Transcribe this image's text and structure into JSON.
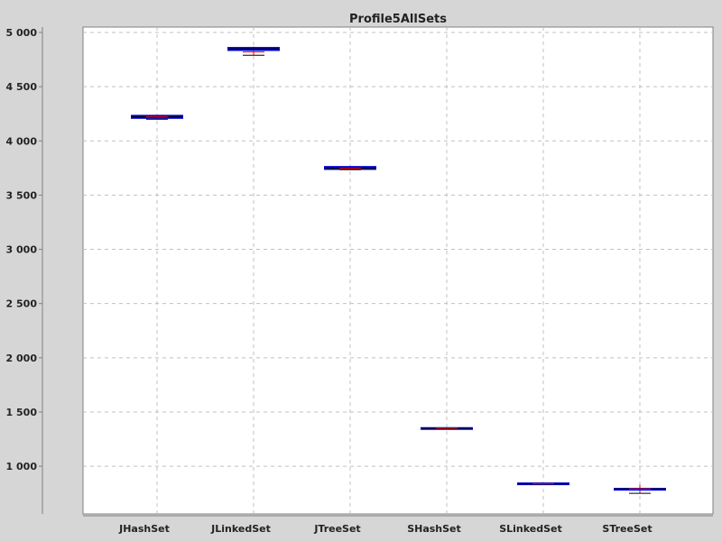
{
  "chart_data": {
    "type": "box",
    "title": "Profile5AllSets",
    "xlabel": "",
    "ylabel": "",
    "ylim": [
      560,
      5050
    ],
    "yticks": [
      1000,
      1500,
      2000,
      2500,
      3000,
      3500,
      4000,
      4500,
      5000
    ],
    "ytick_labels": [
      "1 000",
      "1 500",
      "2 000",
      "2 500",
      "3 000",
      "3 500",
      "4 000",
      "4 500",
      "5 000"
    ],
    "grid": true,
    "categories": [
      "JHashSet",
      "JLinkedSet",
      "JTreeSet",
      "SHashSet",
      "SLinkedSet",
      "STreeSet"
    ],
    "boxes": [
      {
        "category": "JHashSet",
        "min": 4200,
        "q1": 4212,
        "median": 4222,
        "mean": 4222,
        "q3": 4232,
        "max": 4240
      },
      {
        "category": "JLinkedSet",
        "min": 4790,
        "q1": 4838,
        "median": 4848,
        "mean": 4820,
        "q3": 4858,
        "max": 4870
      },
      {
        "category": "JTreeSet",
        "min": 3735,
        "q1": 3741,
        "median": 3748,
        "mean": 3748,
        "q3": 3760,
        "max": 3765
      },
      {
        "category": "SHashSet",
        "min": 1345,
        "q1": 1348,
        "median": 1350,
        "mean": 1350,
        "q3": 1352,
        "max": 1355
      },
      {
        "category": "SLinkedSet",
        "min": 836,
        "q1": 838,
        "median": 840,
        "mean": 840,
        "q3": 842,
        "max": 844
      },
      {
        "category": "STreeSet",
        "min": 750,
        "q1": 788,
        "median": 790,
        "mean": 790,
        "q3": 792,
        "max": 830
      }
    ],
    "colors": {
      "background": "#d6d6d6",
      "plot_background": "#ffffff",
      "box_outline": "#0000cc",
      "box_fill": "#ff66ff",
      "median": "#000000",
      "mean": "#ff0000",
      "gridline": "#c0c0c0",
      "axis": "#808080"
    }
  }
}
